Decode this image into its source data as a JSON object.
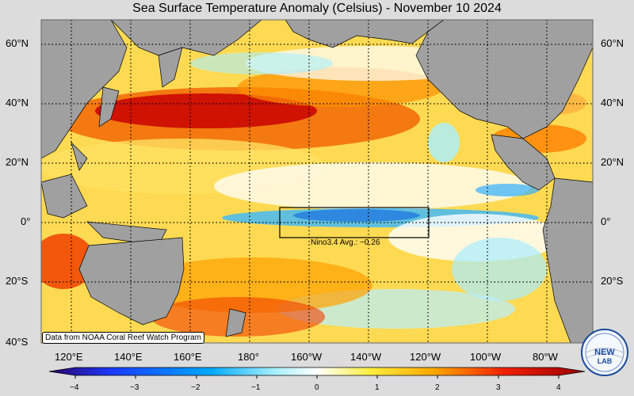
{
  "title": "Sea Surface Temperature Anomaly (Celsius) - November 10 2024",
  "lat_labels": [
    "60°N",
    "40°N",
    "20°N",
    "0°",
    "20°S",
    "40°S"
  ],
  "lon_labels": [
    "120°E",
    "140°E",
    "160°E",
    "180°",
    "160°W",
    "140°W",
    "120°W",
    "100°W",
    "80°W"
  ],
  "colorbar": {
    "ticks": [
      "−4",
      "−3",
      "−2",
      "−1",
      "0",
      "1",
      "2",
      "3",
      "4"
    ],
    "min": -4,
    "max": 4
  },
  "nino_box": {
    "label": "Nino3.4 Avg.: −0.26",
    "lat_range": [
      -5,
      5
    ],
    "lon_range": [
      "170°W",
      "120°W"
    ]
  },
  "credit": "Data from NOAA Coral Reef Watch Program",
  "logo_text": "NEW LAB",
  "colors": {
    "land": "#a0a0a0",
    "warm": "#d40000",
    "cool": "#30c8f0",
    "neutral": "#ffffff",
    "background": "#dcdcdc"
  }
}
